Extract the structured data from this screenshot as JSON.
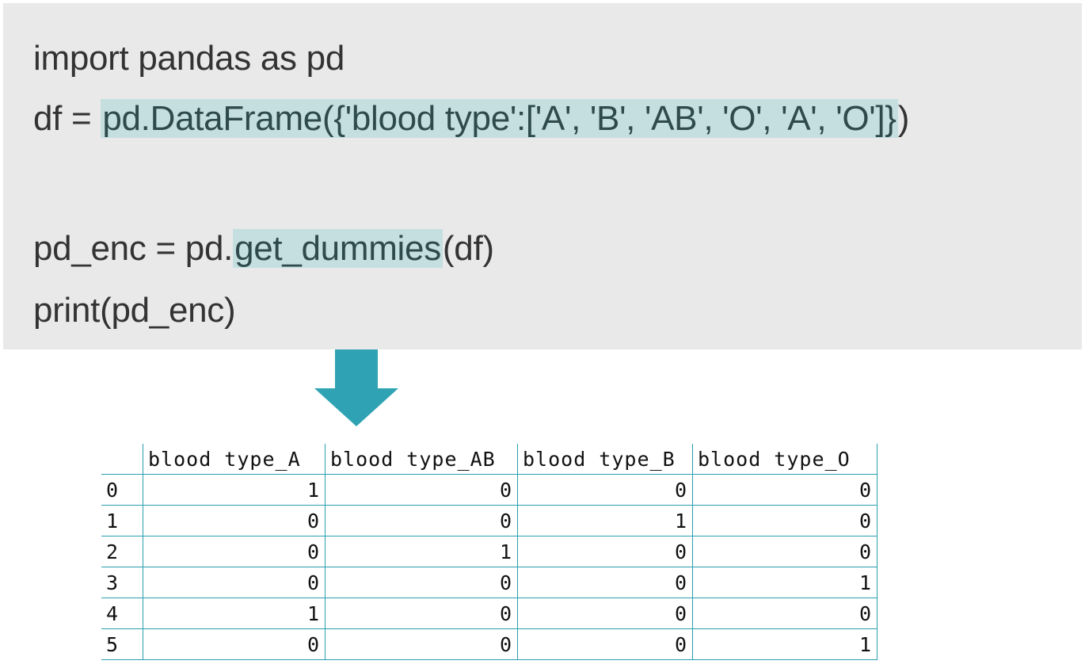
{
  "code": {
    "line1": "import pandas as pd",
    "line2_prefix": "df = ",
    "line2_highlight": "pd.DataFrame({'blood type':['A', 'B', 'AB', 'O', 'A', 'O']}",
    "line2_suffix": ")",
    "line3_prefix": "pd_enc = pd.",
    "line3_highlight": "get_dummies",
    "line3_suffix": "(df)",
    "line4": "print(pd_enc)"
  },
  "arrow": {
    "icon": "arrow-down-icon",
    "color": "#2fa3b3"
  },
  "table": {
    "columns": [
      "",
      "blood type_A",
      "blood type_AB",
      "blood type_B",
      "blood type_O"
    ],
    "rows": [
      [
        "0",
        "1",
        "0",
        "0",
        "0"
      ],
      [
        "1",
        "0",
        "0",
        "1",
        "0"
      ],
      [
        "2",
        "0",
        "1",
        "0",
        "0"
      ],
      [
        "3",
        "0",
        "0",
        "0",
        "1"
      ],
      [
        "4",
        "1",
        "0",
        "0",
        "0"
      ],
      [
        "5",
        "0",
        "0",
        "0",
        "1"
      ]
    ]
  },
  "colors": {
    "code_bg": "#e9e9e9",
    "highlight": "#c5dfe0",
    "table_border": "#2a9fb0"
  }
}
